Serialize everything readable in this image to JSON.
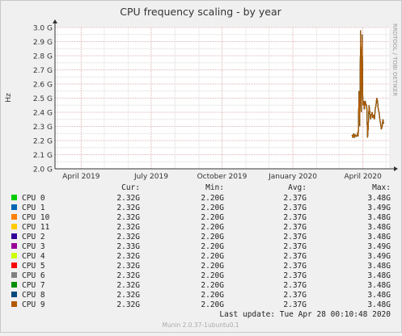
{
  "chart_data": {
    "type": "line",
    "title": "CPU frequency scaling - by year",
    "ylabel": "Hz",
    "side_label": "RRDTOOL / TOBI OETIKER",
    "ylim": [
      2.0,
      3.0
    ],
    "y_ticks": [
      "2.0 G",
      "2.1 G",
      "2.2 G",
      "2.3 G",
      "2.4 G",
      "2.5 G",
      "2.6 G",
      "2.7 G",
      "2.8 G",
      "2.9 G",
      "3.0 G"
    ],
    "x_ticks": [
      "April 2019",
      "July 2019",
      "October 2019",
      "January 2020",
      "April 2020"
    ],
    "grid": true,
    "series_line": {
      "x": [
        "2020-03-18",
        "2020-03-19",
        "2020-03-20",
        "2020-03-21",
        "2020-03-22",
        "2020-03-23",
        "2020-03-24",
        "2020-03-25",
        "2020-03-26",
        "2020-03-27",
        "2020-03-28",
        "2020-03-29",
        "2020-03-30",
        "2020-03-31",
        "2020-04-01",
        "2020-04-02",
        "2020-04-03",
        "2020-04-04",
        "2020-04-05",
        "2020-04-06",
        "2020-04-07",
        "2020-04-08",
        "2020-04-09",
        "2020-04-10",
        "2020-04-11",
        "2020-04-12",
        "2020-04-13",
        "2020-04-14",
        "2020-04-15",
        "2020-04-16",
        "2020-04-17",
        "2020-04-18",
        "2020-04-19",
        "2020-04-20",
        "2020-04-21",
        "2020-04-22",
        "2020-04-23",
        "2020-04-24",
        "2020-04-25",
        "2020-04-26",
        "2020-04-27",
        "2020-04-28"
      ],
      "y": [
        2.24,
        2.22,
        2.25,
        2.22,
        2.24,
        2.23,
        2.23,
        2.25,
        2.23,
        2.55,
        2.3,
        2.98,
        2.4,
        2.95,
        2.45,
        2.48,
        2.42,
        2.48,
        2.45,
        2.45,
        2.22,
        2.3,
        2.45,
        2.4,
        2.35,
        2.38,
        2.4,
        2.36,
        2.38,
        2.35,
        2.42,
        2.45,
        2.5,
        2.48,
        2.42,
        2.4,
        2.35,
        2.32,
        2.28,
        2.3,
        2.35,
        2.32
      ]
    },
    "legend_headers": [
      "Cur:",
      "Min:",
      "Avg:",
      "Max:"
    ],
    "series": [
      {
        "name": "CPU 0",
        "color": "#00cc00",
        "cur": "2.32G",
        "min": "2.20G",
        "avg": "2.37G",
        "max": "3.48G"
      },
      {
        "name": "CPU 1",
        "color": "#0066b3",
        "cur": "2.32G",
        "min": "2.20G",
        "avg": "2.37G",
        "max": "3.49G"
      },
      {
        "name": "CPU 10",
        "color": "#ff8000",
        "cur": "2.32G",
        "min": "2.20G",
        "avg": "2.37G",
        "max": "3.48G"
      },
      {
        "name": "CPU 11",
        "color": "#ffcc00",
        "cur": "2.32G",
        "min": "2.20G",
        "avg": "2.37G",
        "max": "3.48G"
      },
      {
        "name": "CPU 2",
        "color": "#330099",
        "cur": "2.32G",
        "min": "2.20G",
        "avg": "2.37G",
        "max": "3.48G"
      },
      {
        "name": "CPU 3",
        "color": "#990099",
        "cur": "2.33G",
        "min": "2.20G",
        "avg": "2.37G",
        "max": "3.49G"
      },
      {
        "name": "CPU 4",
        "color": "#ccff00",
        "cur": "2.32G",
        "min": "2.20G",
        "avg": "2.37G",
        "max": "3.49G"
      },
      {
        "name": "CPU 5",
        "color": "#ff0000",
        "cur": "2.32G",
        "min": "2.20G",
        "avg": "2.37G",
        "max": "3.48G"
      },
      {
        "name": "CPU 6",
        "color": "#808080",
        "cur": "2.32G",
        "min": "2.20G",
        "avg": "2.37G",
        "max": "3.48G"
      },
      {
        "name": "CPU 7",
        "color": "#008f00",
        "cur": "2.32G",
        "min": "2.20G",
        "avg": "2.37G",
        "max": "3.48G"
      },
      {
        "name": "CPU 8",
        "color": "#00487d",
        "cur": "2.32G",
        "min": "2.20G",
        "avg": "2.37G",
        "max": "3.48G"
      },
      {
        "name": "CPU 9",
        "color": "#b35a00",
        "cur": "2.32G",
        "min": "2.20G",
        "avg": "2.37G",
        "max": "3.48G"
      }
    ],
    "last_update": "Last update: Tue Apr 28 00:10:48 2020",
    "footer": "Munin 2.0.37-1ubuntu0.1"
  }
}
